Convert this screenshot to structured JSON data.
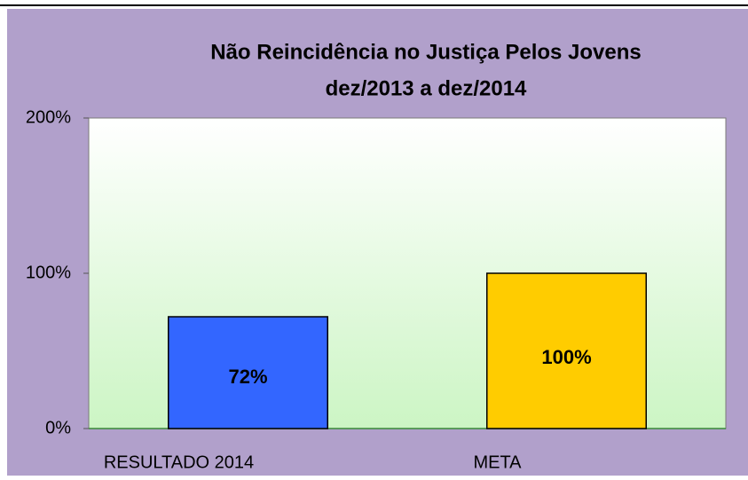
{
  "chart_data": {
    "type": "bar",
    "title": "Não Reincidência no Justiça Pelos Jovens",
    "subtitle": "dez/2013 a dez/2014",
    "categories": [
      "RESULTADO 2014",
      "META"
    ],
    "values": [
      72,
      100
    ],
    "value_labels": [
      "72%",
      "100%"
    ],
    "colors": [
      "#3366ff",
      "#ffcc00"
    ],
    "ylim": [
      0,
      200
    ],
    "yticks": [
      {
        "value": 0,
        "label": "0%"
      },
      {
        "value": 100,
        "label": "100%"
      },
      {
        "value": 200,
        "label": "200%"
      }
    ]
  }
}
